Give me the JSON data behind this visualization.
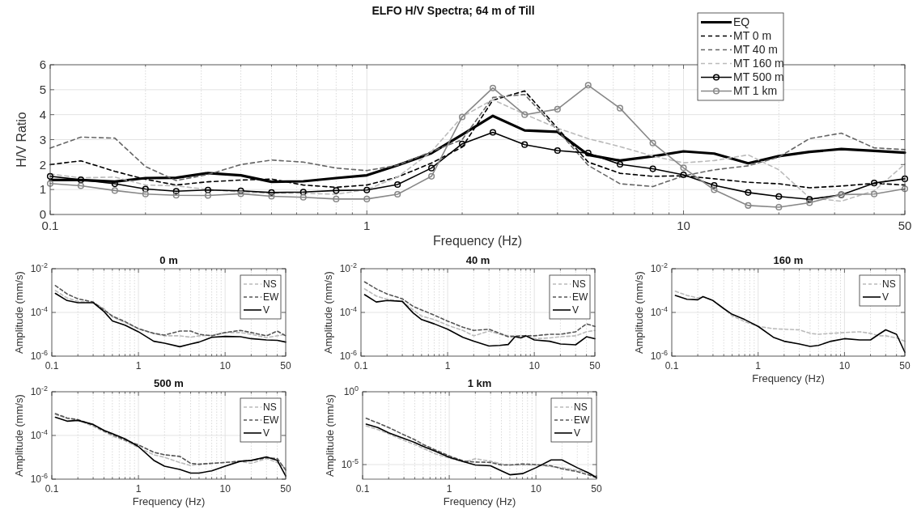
{
  "chart_data": [
    {
      "type": "line",
      "title": "ELFO H/V Spectra; 64 m of Till",
      "xlabel": "Frequency (Hz)",
      "ylabel": "H/V Ratio",
      "log": "x",
      "grid": true,
      "legend": "top right",
      "xlim": [
        0.1,
        50
      ],
      "ylim": [
        0,
        6
      ],
      "xticks": [
        0.1,
        {
          "value": 0.2,
          "label": null
        },
        {
          "value": 0.3,
          "label": null
        },
        {
          "value": 0.4,
          "label": null
        },
        {
          "value": 0.5,
          "label": null
        },
        {
          "value": 0.6,
          "label": null
        },
        {
          "value": 0.7,
          "label": null
        },
        {
          "value": 0.8,
          "label": null
        },
        {
          "value": 0.9,
          "label": null
        },
        1,
        {
          "value": 2,
          "label": null
        },
        {
          "value": 3,
          "label": null
        },
        {
          "value": 4,
          "label": null
        },
        {
          "value": 5,
          "label": null
        },
        {
          "value": 6,
          "label": null
        },
        {
          "value": 7,
          "label": null
        },
        {
          "value": 8,
          "label": null
        },
        {
          "value": 9,
          "label": null
        },
        10,
        {
          "value": 20,
          "label": null
        },
        {
          "value": 30,
          "label": null
        },
        {
          "value": 40,
          "label": null
        },
        50
      ],
      "yticks": [
        0,
        1,
        2,
        3,
        4,
        5,
        6
      ],
      "x": [
        0.1,
        0.125,
        0.16,
        0.2,
        0.25,
        0.315,
        0.4,
        0.5,
        0.63,
        0.8,
        1,
        1.25,
        1.6,
        2,
        2.5,
        3.15,
        4,
        5,
        6.3,
        8,
        10,
        12.5,
        16,
        20,
        25,
        31.5,
        40,
        50
      ],
      "series": [
        {
          "name": "EQ",
          "color": "#000000",
          "line_style": "solid",
          "marker": "none",
          "values": [
            1.38,
            1.38,
            1.32,
            1.46,
            1.47,
            1.66,
            1.57,
            1.31,
            1.33,
            1.46,
            1.57,
            1.97,
            2.46,
            3.2,
            3.95,
            3.37,
            3.31,
            2.39,
            2.16,
            2.33,
            2.53,
            2.44,
            2.05,
            2.34,
            2.51,
            2.62,
            2.55,
            2.48
          ]
        },
        {
          "name": "MT 0 m",
          "color": "#000000",
          "line_style": "dashed",
          "marker": "none",
          "values": [
            2.0,
            2.15,
            1.73,
            1.41,
            1.18,
            1.31,
            1.38,
            1.42,
            1.18,
            1.09,
            1.18,
            1.5,
            2.06,
            2.7,
            4.58,
            4.95,
            3.46,
            2.1,
            1.65,
            1.53,
            1.55,
            1.43,
            1.29,
            1.23,
            1.07,
            1.14,
            1.25,
            1.18
          ]
        },
        {
          "name": "MT 40 m",
          "color": "#666666",
          "line_style": "dashed",
          "marker": "none",
          "values": [
            2.66,
            3.1,
            3.06,
            1.92,
            1.36,
            1.6,
            2.0,
            2.18,
            2.1,
            1.86,
            1.76,
            1.97,
            2.52,
            3.0,
            4.69,
            4.81,
            3.37,
            1.97,
            1.23,
            1.12,
            1.55,
            1.79,
            1.95,
            2.3,
            3.04,
            3.26,
            2.67,
            2.6
          ]
        },
        {
          "name": "MT 160 m",
          "color": "#bbbbbb",
          "line_style": "dashed",
          "marker": "none",
          "values": [
            1.62,
            1.47,
            1.5,
            1.18,
            1.15,
            1.0,
            0.9,
            0.85,
            0.85,
            0.81,
            1.0,
            1.5,
            2.52,
            3.92,
            4.6,
            4.02,
            3.46,
            3.04,
            2.72,
            2.34,
            2.07,
            2.16,
            2.39,
            1.79,
            0.67,
            0.53,
            0.95,
            2.02
          ]
        },
        {
          "name": "MT 500 m",
          "color": "#000000",
          "line_style": "solid",
          "marker": "circle",
          "values": [
            1.53,
            1.39,
            1.23,
            1.02,
            0.93,
            0.98,
            0.95,
            0.88,
            0.9,
            0.96,
            0.98,
            1.2,
            1.86,
            2.83,
            3.29,
            2.8,
            2.56,
            2.46,
            2.01,
            1.83,
            1.59,
            1.17,
            0.88,
            0.72,
            0.61,
            0.79,
            1.26,
            1.43
          ]
        },
        {
          "name": "MT 1 km",
          "color": "#888888",
          "line_style": "solid",
          "marker": "circle",
          "values": [
            1.24,
            1.15,
            0.96,
            0.82,
            0.77,
            0.76,
            0.83,
            0.73,
            0.69,
            0.62,
            0.62,
            0.81,
            1.53,
            3.91,
            5.07,
            4.0,
            4.22,
            5.18,
            4.26,
            2.86,
            1.87,
            0.99,
            0.36,
            0.29,
            0.47,
            0.8,
            0.82,
            1.03
          ]
        }
      ]
    },
    {
      "type": "line",
      "title": "0 m",
      "ylabel": "Amplitude (mm/s)",
      "log": "xy",
      "grid": true,
      "legend": "top right",
      "xlim": [
        0.1,
        50
      ],
      "ylim": [
        1e-06,
        0.01
      ],
      "xticks": [
        0.1,
        {
          "value": 0.2,
          "label": null
        },
        {
          "value": 0.3,
          "label": null
        },
        {
          "value": 0.4,
          "label": null
        },
        {
          "value": 0.5,
          "label": null
        },
        {
          "value": 0.6,
          "label": null
        },
        {
          "value": 0.7,
          "label": null
        },
        {
          "value": 0.8,
          "label": null
        },
        {
          "value": 0.9,
          "label": null
        },
        1,
        {
          "value": 2,
          "label": null
        },
        {
          "value": 3,
          "label": null
        },
        {
          "value": 4,
          "label": null
        },
        {
          "value": 5,
          "label": null
        },
        {
          "value": 6,
          "label": null
        },
        {
          "value": 7,
          "label": null
        },
        {
          "value": 8,
          "label": null
        },
        {
          "value": 9,
          "label": null
        },
        10,
        {
          "value": 20,
          "label": null
        },
        {
          "value": 30,
          "label": null
        },
        {
          "value": 40,
          "label": null
        },
        50
      ],
      "yticks": [
        {
          "value": 1e-06,
          "label": "10$^{-6}$"
        },
        {
          "value": 0.0001,
          "label": "10$^{-4}$"
        },
        {
          "value": 0.01,
          "label": "10$^{-2}$"
        }
      ],
      "x": [
        0.11,
        0.15,
        0.2,
        0.3,
        0.4,
        0.5,
        0.7,
        1,
        1.5,
        2,
        3,
        4,
        5,
        7,
        10,
        15,
        20,
        30,
        40,
        50
      ],
      "series": [
        {
          "name": "NS",
          "color": "#bbbbbb",
          "line_style": "dashed",
          "values": [
            0.001,
            0.00046,
            0.00032,
            0.00028,
            0.00015,
            6.2e-05,
            3.5e-05,
            1.8e-05,
            1.1e-05,
            8.5e-06,
            8.5e-06,
            7.3e-06,
            8.5e-06,
            9e-06,
            1.2e-05,
            1.2e-05,
            1e-05,
            7e-06,
            8.5e-06,
            1e-05
          ]
        },
        {
          "name": "EW",
          "color": "#555555",
          "line_style": "dashed",
          "values": [
            0.0017,
            0.0007,
            0.00042,
            0.0003,
            0.00013,
            6.8e-05,
            3.8e-05,
            1.8e-05,
            1.1e-05,
            9.2e-06,
            1.4e-05,
            1.4e-05,
            1e-05,
            8.5e-06,
            1.2e-05,
            1.5e-05,
            1.2e-05,
            8.5e-06,
            1.4e-05,
            8.5e-06
          ]
        },
        {
          "name": "V",
          "color": "#000000",
          "line_style": "solid",
          "values": [
            0.00074,
            0.00035,
            0.00028,
            0.00028,
            0.00011,
            4.1e-05,
            2.6e-05,
            1.3e-05,
            4.8e-06,
            3.9e-06,
            2.7e-06,
            3.6e-06,
            4.4e-06,
            7.3e-06,
            8e-06,
            7.7e-06,
            6.3e-06,
            5.5e-06,
            5.3e-06,
            4.4e-06
          ]
        }
      ]
    },
    {
      "type": "line",
      "title": "40 m",
      "ylabel": "Amplitude (mm/s)",
      "log": "xy",
      "grid": true,
      "legend": "top right",
      "xlim": [
        0.1,
        50
      ],
      "ylim": [
        1e-06,
        0.01
      ],
      "xticks": [
        0.1,
        {
          "value": 0.2,
          "label": null
        },
        {
          "value": 0.3,
          "label": null
        },
        {
          "value": 0.4,
          "label": null
        },
        {
          "value": 0.5,
          "label": null
        },
        {
          "value": 0.6,
          "label": null
        },
        {
          "value": 0.7,
          "label": null
        },
        {
          "value": 0.8,
          "label": null
        },
        {
          "value": 0.9,
          "label": null
        },
        1,
        {
          "value": 2,
          "label": null
        },
        {
          "value": 3,
          "label": null
        },
        {
          "value": 4,
          "label": null
        },
        {
          "value": 5,
          "label": null
        },
        {
          "value": 6,
          "label": null
        },
        {
          "value": 7,
          "label": null
        },
        {
          "value": 8,
          "label": null
        },
        {
          "value": 9,
          "label": null
        },
        10,
        {
          "value": 20,
          "label": null
        },
        {
          "value": 30,
          "label": null
        },
        {
          "value": 40,
          "label": null
        },
        50
      ],
      "yticks": [
        {
          "value": 1e-06,
          "label": "10$^{-6}$"
        },
        {
          "value": 0.0001,
          "label": "10$^{-4}$"
        },
        {
          "value": 0.01,
          "label": "10$^{-2}$"
        }
      ],
      "x": [
        0.11,
        0.15,
        0.2,
        0.3,
        0.4,
        0.5,
        0.7,
        1,
        1.5,
        2,
        3,
        4,
        5,
        6,
        7,
        8,
        10,
        15,
        20,
        30,
        40,
        50
      ],
      "series": [
        {
          "name": "NS",
          "color": "#bbbbbb",
          "line_style": "dashed",
          "values": [
            0.0012,
            0.00056,
            0.0004,
            0.00032,
            0.00013,
            6.8e-05,
            4.7e-05,
            2.6e-05,
            1.5e-05,
            8.5e-06,
            1.4e-05,
            1e-05,
            8.5e-06,
            8.5e-06,
            8.5e-06,
            8e-06,
            6.3e-06,
            6.8e-06,
            7.7e-06,
            8.5e-06,
            1.3e-05,
            1.5e-05
          ]
        },
        {
          "name": "EW",
          "color": "#555555",
          "line_style": "dashed",
          "values": [
            0.0025,
            0.0012,
            0.0007,
            0.00042,
            0.00019,
            0.00013,
            7.5e-05,
            4e-05,
            2.1e-05,
            1.5e-05,
            1.7e-05,
            1.1e-05,
            7.7e-06,
            8e-06,
            8.5e-06,
            8.5e-06,
            8.5e-06,
            1e-05,
            1e-05,
            1.3e-05,
            3e-05,
            2.3e-05
          ]
        },
        {
          "name": "V",
          "color": "#000000",
          "line_style": "solid",
          "values": [
            0.00065,
            0.0003,
            0.00035,
            0.00032,
            9.5e-05,
            4.7e-05,
            3e-05,
            1.7e-05,
            7.3e-06,
            4.8e-06,
            2.9e-06,
            3.1e-06,
            3.4e-06,
            7.7e-06,
            6.8e-06,
            8.5e-06,
            5.5e-06,
            4.8e-06,
            3.6e-06,
            3.3e-06,
            7.7e-06,
            6.3e-06
          ]
        }
      ]
    },
    {
      "type": "line",
      "title": "160 m",
      "xlabel": "Frequency (Hz)",
      "ylabel": "Amplitude (mm/s)",
      "log": "xy",
      "grid": true,
      "legend": "top right",
      "xlim": [
        0.1,
        50
      ],
      "ylim": [
        1e-06,
        0.01
      ],
      "xticks": [
        0.1,
        {
          "value": 0.2,
          "label": null
        },
        {
          "value": 0.3,
          "label": null
        },
        {
          "value": 0.4,
          "label": null
        },
        {
          "value": 0.5,
          "label": null
        },
        {
          "value": 0.6,
          "label": null
        },
        {
          "value": 0.7,
          "label": null
        },
        {
          "value": 0.8,
          "label": null
        },
        {
          "value": 0.9,
          "label": null
        },
        1,
        {
          "value": 2,
          "label": null
        },
        {
          "value": 3,
          "label": null
        },
        {
          "value": 4,
          "label": null
        },
        {
          "value": 5,
          "label": null
        },
        {
          "value": 6,
          "label": null
        },
        {
          "value": 7,
          "label": null
        },
        {
          "value": 8,
          "label": null
        },
        {
          "value": 9,
          "label": null
        },
        10,
        {
          "value": 20,
          "label": null
        },
        {
          "value": 30,
          "label": null
        },
        {
          "value": 40,
          "label": null
        },
        50
      ],
      "yticks": [
        {
          "value": 1e-06,
          "label": "10$^{-6}$"
        },
        {
          "value": 0.0001,
          "label": "10$^{-4}$"
        },
        {
          "value": 0.01,
          "label": "10$^{-2}$"
        }
      ],
      "x": [
        0.11,
        0.15,
        0.2,
        0.23,
        0.3,
        0.4,
        0.5,
        0.7,
        1,
        1.5,
        2,
        3,
        4,
        5,
        7,
        10,
        15,
        20,
        25,
        30,
        40,
        50
      ],
      "series": [
        {
          "name": "NS",
          "color": "#bbbbbb",
          "line_style": "dashed",
          "values": [
            0.00093,
            0.0006,
            0.00046,
            0.00053,
            0.00035,
            0.00015,
            7e-05,
            3.8e-05,
            2.3e-05,
            1.8e-05,
            1.7e-05,
            1.6e-05,
            1.1e-05,
            1e-05,
            1.1e-05,
            1.2e-05,
            1.3e-05,
            1.1e-05,
            8.5e-06,
            8.5e-06,
            6.8e-06,
            4.8e-06
          ]
        },
        {
          "name": "V",
          "color": "#000000",
          "line_style": "solid",
          "values": [
            0.0006,
            0.0004,
            0.00038,
            0.00053,
            0.00035,
            0.00015,
            8.2e-05,
            4.7e-05,
            2.3e-05,
            7.3e-06,
            4.8e-06,
            3.6e-06,
            2.8e-06,
            3.1e-06,
            4.8e-06,
            6.3e-06,
            5.5e-06,
            5.5e-06,
            1e-05,
            1.6e-05,
            1e-05,
            1.5e-06
          ]
        }
      ]
    },
    {
      "type": "line",
      "title": "500 m",
      "xlabel": "Frequency (Hz)",
      "ylabel": "Amplitude (mm/s)",
      "log": "xy",
      "grid": true,
      "legend": "top right",
      "xlim": [
        0.1,
        50
      ],
      "ylim": [
        1e-06,
        0.01
      ],
      "xticks": [
        0.1,
        {
          "value": 0.2,
          "label": null
        },
        {
          "value": 0.3,
          "label": null
        },
        {
          "value": 0.4,
          "label": null
        },
        {
          "value": 0.5,
          "label": null
        },
        {
          "value": 0.6,
          "label": null
        },
        {
          "value": 0.7,
          "label": null
        },
        {
          "value": 0.8,
          "label": null
        },
        {
          "value": 0.9,
          "label": null
        },
        1,
        {
          "value": 2,
          "label": null
        },
        {
          "value": 3,
          "label": null
        },
        {
          "value": 4,
          "label": null
        },
        {
          "value": 5,
          "label": null
        },
        {
          "value": 6,
          "label": null
        },
        {
          "value": 7,
          "label": null
        },
        {
          "value": 8,
          "label": null
        },
        {
          "value": 9,
          "label": null
        },
        10,
        {
          "value": 20,
          "label": null
        },
        {
          "value": 30,
          "label": null
        },
        {
          "value": 40,
          "label": null
        },
        50
      ],
      "yticks": [
        {
          "value": 1e-06,
          "label": "10$^{-6}$"
        },
        {
          "value": 0.0001,
          "label": "10$^{-4}$"
        },
        {
          "value": 0.01,
          "label": "10$^{-2}$"
        }
      ],
      "x": [
        0.11,
        0.15,
        0.2,
        0.3,
        0.4,
        0.5,
        0.7,
        1,
        1.5,
        2,
        3,
        4,
        5,
        7,
        10,
        15,
        20,
        30,
        40,
        50
      ],
      "series": [
        {
          "name": "NS",
          "color": "#bbbbbb",
          "line_style": "dashed",
          "values": [
            0.00091,
            0.0006,
            0.00051,
            0.00026,
            0.00015,
            9.4e-05,
            5.7e-05,
            2.8e-05,
            1.3e-05,
            1e-05,
            5.8e-06,
            4.2e-06,
            4.8e-06,
            5.3e-06,
            5.8e-06,
            6.6e-06,
            5.3e-06,
            8.8e-06,
            5.8e-06,
            3.2e-06
          ]
        },
        {
          "name": "EW",
          "color": "#555555",
          "line_style": "dashed",
          "values": [
            0.001,
            0.00063,
            0.00053,
            0.0003,
            0.00016,
            0.00011,
            6.2e-05,
            3.7e-05,
            1.7e-05,
            1.3e-05,
            1.1e-05,
            5.3e-06,
            4.8e-06,
            5.3e-06,
            5.8e-06,
            6.6e-06,
            7.2e-06,
            9.6e-06,
            8.8e-06,
            2.6e-06
          ]
        },
        {
          "name": "V",
          "color": "#000000",
          "line_style": "solid",
          "values": [
            0.00068,
            0.00045,
            0.00049,
            0.00032,
            0.00017,
            0.00012,
            7e-05,
            3.1e-05,
            7.3e-06,
            3.9e-06,
            2.8e-06,
            1.9e-06,
            1.9e-06,
            2.4e-06,
            3.9e-06,
            6.6e-06,
            7.2e-06,
            1.05e-05,
            7.2e-06,
            1.4e-06
          ]
        }
      ]
    },
    {
      "type": "line",
      "title": "1 km",
      "xlabel": "Frequency (Hz)",
      "ylabel": "Amplitude (mm/s)",
      "log": "xy",
      "grid": true,
      "legend": "top right",
      "xlim": [
        0.1,
        50
      ],
      "ylim": [
        1e-06,
        1
      ],
      "xticks": [
        0.1,
        {
          "value": 0.2,
          "label": null
        },
        {
          "value": 0.3,
          "label": null
        },
        {
          "value": 0.4,
          "label": null
        },
        {
          "value": 0.5,
          "label": null
        },
        {
          "value": 0.6,
          "label": null
        },
        {
          "value": 0.7,
          "label": null
        },
        {
          "value": 0.8,
          "label": null
        },
        {
          "value": 0.9,
          "label": null
        },
        1,
        {
          "value": 2,
          "label": null
        },
        {
          "value": 3,
          "label": null
        },
        {
          "value": 4,
          "label": null
        },
        {
          "value": 5,
          "label": null
        },
        {
          "value": 6,
          "label": null
        },
        {
          "value": 7,
          "label": null
        },
        {
          "value": 8,
          "label": null
        },
        {
          "value": 9,
          "label": null
        },
        10,
        {
          "value": 20,
          "label": null
        },
        {
          "value": 30,
          "label": null
        },
        {
          "value": 40,
          "label": null
        },
        50
      ],
      "yticks": [
        {
          "value": 1e-05,
          "label": "10$^{-5}$"
        },
        {
          "value": 1,
          "label": "10$^{0}$"
        }
      ],
      "x": [
        0.11,
        0.15,
        0.2,
        0.3,
        0.4,
        0.5,
        0.7,
        1,
        1.5,
        2,
        3,
        4,
        5,
        7,
        10,
        15,
        20,
        30,
        40,
        50
      ],
      "series": [
        {
          "name": "NS",
          "color": "#bbbbbb",
          "line_style": "dashed",
          "values": [
            0.0045,
            0.0025,
            0.0013,
            0.00046,
            0.00024,
            0.00013,
            5.3e-05,
            2.8e-05,
            1.5e-05,
            2.5e-05,
            1.7e-05,
            1.1e-05,
            9.4e-06,
            9.4e-06,
            9.4e-06,
            7.3e-06,
            6.1e-06,
            4e-06,
            2.8e-06,
            1.5e-06
          ]
        },
        {
          "name": "EW",
          "color": "#555555",
          "line_style": "dashed",
          "values": [
            0.015,
            0.0072,
            0.0035,
            0.0011,
            0.00051,
            0.00024,
            9.8e-05,
            3.9e-05,
            1.7e-05,
            1.5e-05,
            1.4e-05,
            9.4e-06,
            9.4e-06,
            1.1e-05,
            1e-05,
            8.3e-06,
            5.1e-06,
            3.3e-06,
            2e-06,
            1.3e-06
          ]
        },
        {
          "name": "V",
          "color": "#000000",
          "line_style": "solid",
          "values": [
            0.006,
            0.0035,
            0.0015,
            0.00062,
            0.00033,
            0.00018,
            8.1e-05,
            3.2e-05,
            1.5e-05,
            9.4e-06,
            8.3e-06,
            3.7e-06,
            2e-06,
            2.4e-06,
            6.1e-06,
            2.1e-05,
            2.1e-05,
            6.1e-06,
            2.8e-06,
            1.3e-06
          ]
        }
      ]
    }
  ]
}
